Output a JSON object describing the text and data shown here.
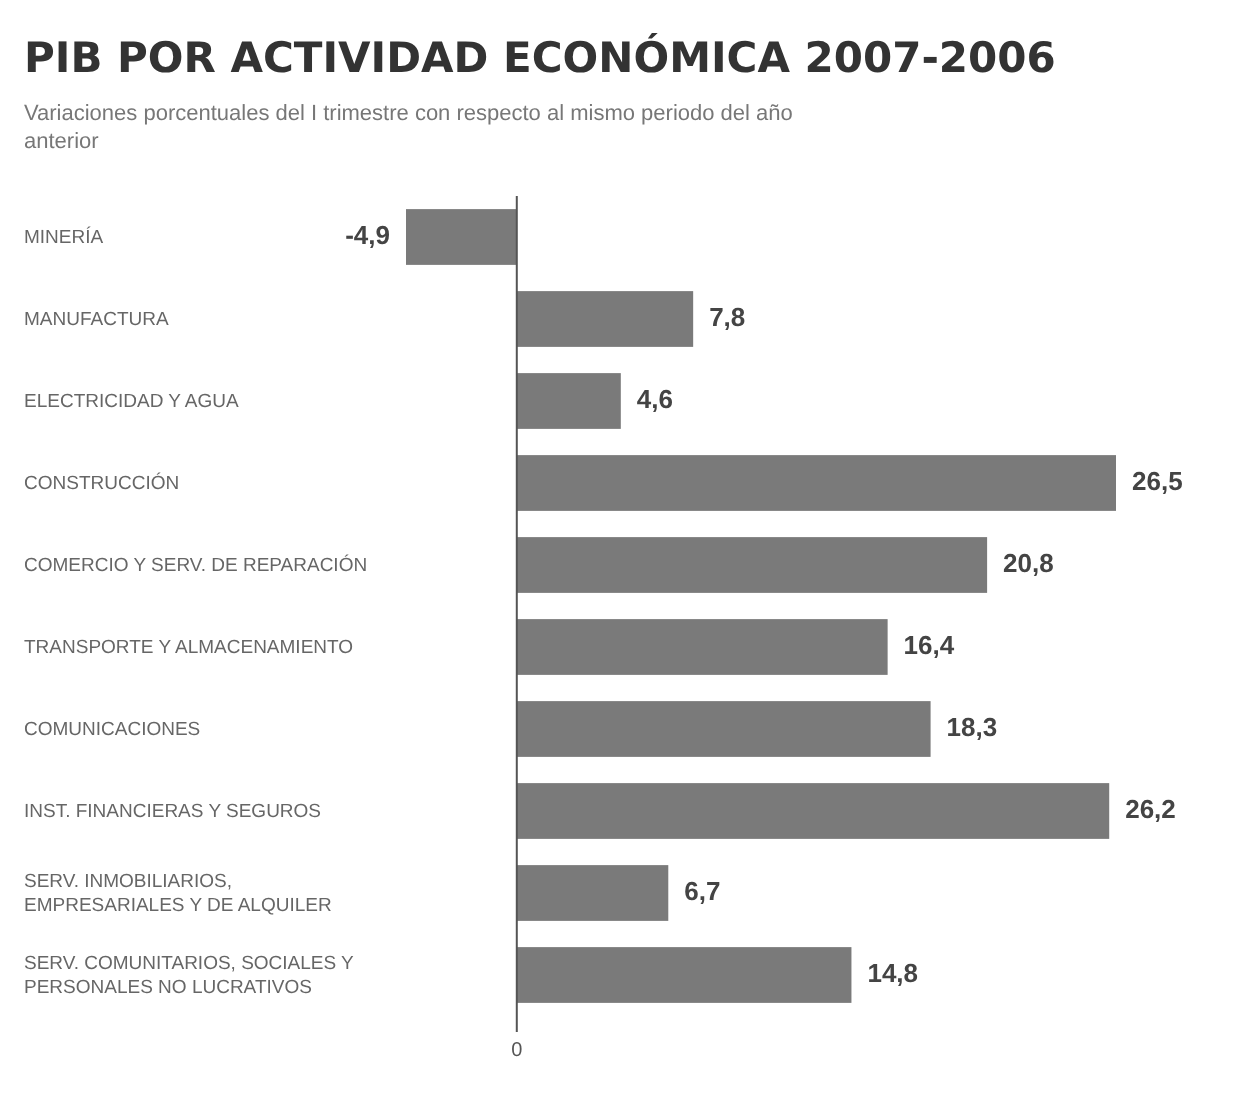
{
  "chart_data": {
    "type": "bar",
    "orientation": "horizontal",
    "title": "PIB POR ACTIVIDAD ECONÓMICA 2007-2006",
    "subtitle": "Variaciones porcentuales del I trimestre con respecto al mismo periodo del año anterior",
    "categories": [
      "MINERÍA",
      "MANUFACTURA",
      "ELECTRICIDAD Y AGUA",
      "CONSTRUCCIÓN",
      "COMERCIO Y SERV. DE REPARACIÓN",
      "TRANSPORTE Y ALMACENAMIENTO",
      "COMUNICACIONES",
      "INST. FINANCIERAS Y SEGUROS",
      "SERV. INMOBILIARIOS, EMPRESARIALES Y DE ALQUILER",
      "SERV. COMUNITARIOS, SOCIALES Y PERSONALES NO LUCRATIVOS"
    ],
    "values": [
      -4.9,
      7.8,
      4.6,
      26.5,
      20.8,
      16.4,
      18.3,
      26.2,
      6.7,
      14.8
    ],
    "value_labels": [
      "-4,9",
      "7,8",
      "4,6",
      "26,5",
      "20,8",
      "16,4",
      "18,3",
      "26,2",
      "6,7",
      "14,8"
    ],
    "color": "#7a7a7a",
    "annotations": [
      "0"
    ]
  }
}
